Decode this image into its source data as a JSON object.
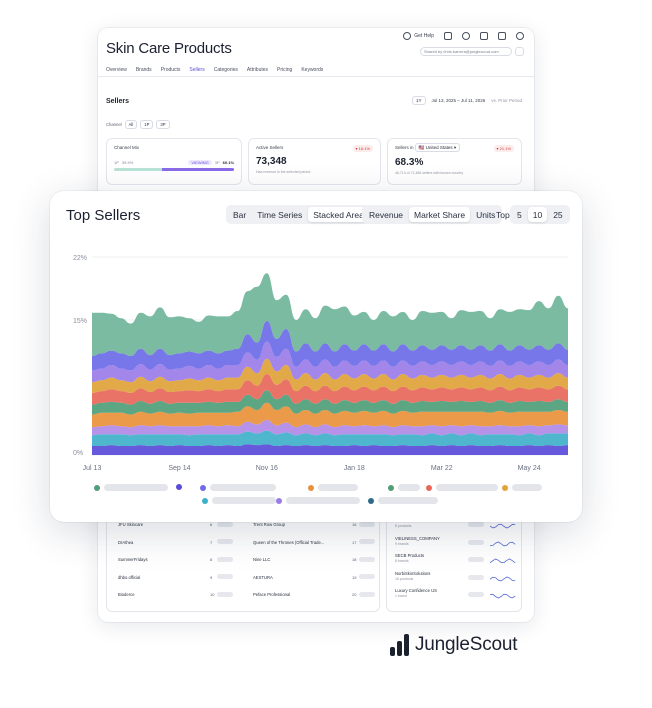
{
  "app": {
    "page_title": "Skin Care Products",
    "help_label": "Get Help",
    "shared_label": "Shared by chris.barrera@junglescout.com"
  },
  "tabs": [
    {
      "label": "Overview"
    },
    {
      "label": "Brands"
    },
    {
      "label": "Products"
    },
    {
      "label": "Sellers",
      "active": true
    },
    {
      "label": "Categories"
    },
    {
      "label": "Attributes"
    },
    {
      "label": "Pricing"
    },
    {
      "label": "Keywords"
    }
  ],
  "sellers_section": {
    "title": "Sellers",
    "period_button": "1Y",
    "date_range": "Jul 13, 2025 – Jul 11, 2026",
    "compare": "vs. Prior Period",
    "channel_label": "Channel",
    "channel_options": [
      "All",
      "1P",
      "3P"
    ]
  },
  "stat_cards": {
    "channel_mix": {
      "label": "Channel Mix",
      "left_label": "1P",
      "left_value": "39.9%",
      "viewing_badge": "VIEWING",
      "right_label": "3P",
      "right_value": "60.1%",
      "share_1p": 0.399
    },
    "active_sellers": {
      "label": "Active Sellers",
      "value": "73,348",
      "delta": "16.1%",
      "sub": "Had revenue in the selected period"
    },
    "sellers_in": {
      "label": "Sellers in",
      "country": "United States",
      "value": "68.3%",
      "delta": "21.1%",
      "sub": "46,714 of 71,366 sellers with known country"
    }
  },
  "top_sellers": {
    "title": "Top Sellers",
    "view_options": [
      "Bar",
      "Time Series",
      "Stacked Area"
    ],
    "view_selected": "Stacked Area",
    "metric_options": [
      "Revenue",
      "Market Share",
      "Units"
    ],
    "metric_selected": "Market Share",
    "top_label": "Top",
    "top_options": [
      "5",
      "10",
      "25"
    ],
    "top_selected": "10"
  },
  "chart_data": {
    "type": "area",
    "stacked": true,
    "ylim": [
      0,
      22
    ],
    "y_ticks": [
      0,
      15,
      22
    ],
    "y_tick_labels": [
      "0%",
      "15%",
      "22%"
    ],
    "x_tick_labels": [
      "Jul 13",
      "Sep 14",
      "Nov 16",
      "Jan 18",
      "Mar 22",
      "May 24"
    ],
    "x_tick_index": [
      0,
      9,
      18,
      27,
      36,
      45
    ],
    "grid": true,
    "legend": "bottom",
    "series": [
      {
        "color": "#5a4bd8",
        "values": [
          1.0,
          1.0,
          1.1,
          1.0,
          1.0,
          1.1,
          1.0,
          1.1,
          1.0,
          1.1,
          1.0,
          1.0,
          1.1,
          1.0,
          1.1,
          1.0,
          1.2,
          1.1,
          1.2,
          1.0,
          1.1,
          1.0,
          1.1,
          1.0,
          1.1,
          1.0,
          1.0,
          1.1,
          1.0,
          1.1,
          1.0,
          1.0,
          1.1,
          1.0,
          1.0,
          1.1,
          1.0,
          1.1,
          1.0,
          1.1,
          1.0,
          1.0,
          1.1,
          1.0,
          1.0,
          1.1,
          1.0,
          1.1,
          1.0,
          1.1
        ]
      },
      {
        "color": "#3fb0c9",
        "values": [
          1.2,
          1.3,
          1.2,
          1.3,
          1.2,
          1.2,
          1.3,
          1.2,
          1.3,
          1.2,
          1.2,
          1.3,
          1.2,
          1.3,
          1.2,
          1.3,
          1.4,
          1.3,
          1.5,
          1.3,
          1.4,
          1.2,
          1.3,
          1.2,
          1.3,
          1.2,
          1.3,
          1.2,
          1.3,
          1.2,
          1.3,
          1.2,
          1.2,
          1.3,
          1.2,
          1.3,
          1.2,
          1.3,
          1.2,
          1.3,
          1.2,
          1.3,
          1.2,
          1.3,
          1.2,
          1.3,
          1.2,
          1.3,
          1.4,
          1.3
        ]
      },
      {
        "color": "#b08ae6",
        "values": [
          0.9,
          0.9,
          1.0,
          0.9,
          0.9,
          1.0,
          0.9,
          1.0,
          0.9,
          0.9,
          1.0,
          0.9,
          1.0,
          0.9,
          1.0,
          0.9,
          1.1,
          1.0,
          1.2,
          1.0,
          1.1,
          0.9,
          1.0,
          0.9,
          1.0,
          0.9,
          1.0,
          0.9,
          1.0,
          0.9,
          1.0,
          0.9,
          1.0,
          0.9,
          1.0,
          0.9,
          1.0,
          0.9,
          1.0,
          0.9,
          1.0,
          0.9,
          1.0,
          0.9,
          1.0,
          0.9,
          1.0,
          0.9,
          1.0,
          0.9
        ]
      },
      {
        "color": "#e8913a",
        "values": [
          1.4,
          1.5,
          1.4,
          1.5,
          1.4,
          1.5,
          1.4,
          1.5,
          1.4,
          1.5,
          1.4,
          1.5,
          1.4,
          1.5,
          1.4,
          1.6,
          1.7,
          1.6,
          1.9,
          1.7,
          1.8,
          1.5,
          1.6,
          1.5,
          1.6,
          1.5,
          1.6,
          1.5,
          1.6,
          1.5,
          1.6,
          1.5,
          1.6,
          1.5,
          1.6,
          1.5,
          1.6,
          1.5,
          1.6,
          1.5,
          1.6,
          1.5,
          1.6,
          1.5,
          1.6,
          1.5,
          1.6,
          1.5,
          1.6,
          1.5
        ]
      },
      {
        "color": "#4f9e7a",
        "values": [
          1.1,
          1.1,
          1.2,
          1.1,
          1.1,
          1.2,
          1.1,
          1.2,
          1.1,
          1.1,
          1.2,
          1.1,
          1.2,
          1.1,
          1.2,
          1.1,
          1.3,
          1.2,
          1.4,
          1.2,
          1.3,
          1.1,
          1.2,
          1.1,
          1.2,
          1.1,
          1.2,
          1.1,
          1.2,
          1.1,
          1.2,
          1.1,
          1.2,
          1.1,
          1.2,
          1.1,
          1.2,
          1.1,
          1.2,
          1.1,
          1.2,
          1.1,
          1.2,
          1.1,
          1.2,
          1.1,
          1.2,
          1.1,
          1.2,
          1.1
        ]
      },
      {
        "color": "#e8675a",
        "values": [
          1.3,
          1.3,
          1.4,
          1.3,
          1.3,
          1.4,
          1.3,
          1.4,
          1.3,
          1.3,
          1.4,
          1.3,
          1.4,
          1.3,
          1.4,
          1.4,
          1.6,
          1.5,
          1.8,
          1.6,
          1.7,
          1.4,
          1.5,
          1.4,
          1.5,
          1.4,
          1.5,
          1.4,
          1.5,
          1.4,
          1.5,
          1.4,
          1.5,
          1.4,
          1.5,
          1.4,
          1.5,
          1.4,
          1.5,
          1.4,
          1.5,
          1.4,
          1.5,
          1.4,
          1.5,
          1.4,
          1.5,
          1.4,
          1.5,
          1.4
        ]
      },
      {
        "color": "#e0a23a",
        "values": [
          1.2,
          1.2,
          1.3,
          1.2,
          1.2,
          1.3,
          1.2,
          1.3,
          1.2,
          1.2,
          1.3,
          1.2,
          1.3,
          1.2,
          1.3,
          1.3,
          1.5,
          1.4,
          1.7,
          1.5,
          1.6,
          1.3,
          1.4,
          1.3,
          1.4,
          1.3,
          1.4,
          1.3,
          1.4,
          1.3,
          1.4,
          1.3,
          1.4,
          1.3,
          1.4,
          1.3,
          1.4,
          1.3,
          1.4,
          1.3,
          1.4,
          1.3,
          1.4,
          1.3,
          1.4,
          1.3,
          1.4,
          1.3,
          1.4,
          1.3
        ]
      },
      {
        "color": "#9a7ce8",
        "values": [
          1.3,
          1.3,
          1.4,
          1.3,
          1.3,
          1.4,
          1.3,
          1.4,
          1.3,
          1.3,
          1.4,
          1.3,
          1.4,
          1.3,
          1.4,
          1.4,
          1.6,
          1.5,
          1.9,
          1.6,
          1.8,
          1.4,
          1.5,
          1.4,
          1.5,
          1.4,
          1.5,
          1.4,
          1.5,
          1.4,
          1.5,
          1.4,
          1.5,
          1.4,
          1.5,
          1.4,
          1.5,
          1.4,
          1.5,
          1.4,
          1.5,
          1.4,
          1.5,
          1.4,
          1.5,
          1.4,
          1.5,
          1.4,
          1.5,
          1.4
        ]
      },
      {
        "color": "#6c6be8",
        "values": [
          1.6,
          1.7,
          1.6,
          1.7,
          1.6,
          1.7,
          1.6,
          1.7,
          1.6,
          1.7,
          1.6,
          1.7,
          1.6,
          1.7,
          1.6,
          1.8,
          2.0,
          1.9,
          2.3,
          2.0,
          2.2,
          1.7,
          1.8,
          1.7,
          1.8,
          1.7,
          1.8,
          1.7,
          1.8,
          1.7,
          1.8,
          1.7,
          1.8,
          1.7,
          1.8,
          1.7,
          1.8,
          1.7,
          1.8,
          1.7,
          1.8,
          1.7,
          1.8,
          1.7,
          1.8,
          1.7,
          1.8,
          1.7,
          1.8,
          1.7
        ]
      },
      {
        "color": "#6fb59a",
        "values": [
          4.8,
          4.5,
          4.1,
          3.9,
          3.6,
          4.0,
          4.3,
          4.6,
          4.2,
          4.1,
          3.7,
          3.5,
          3.9,
          4.1,
          3.8,
          4.2,
          4.8,
          6.2,
          5.3,
          4.3,
          3.8,
          3.5,
          3.8,
          3.7,
          4.2,
          4.7,
          4.2,
          3.9,
          3.6,
          3.4,
          3.7,
          3.9,
          3.6,
          3.4,
          3.8,
          4.1,
          3.7,
          3.5,
          3.9,
          4.2,
          3.8,
          3.6,
          3.9,
          4.3,
          4.0,
          4.4,
          4.9,
          4.6,
          5.3,
          4.6
        ]
      }
    ]
  },
  "legend_dot_colors": [
    "#4f9e7a",
    "#5a4bd8",
    "#6c6be8",
    "#e8913a",
    "#4f9e7a",
    "#e8675a",
    "#e0a23a",
    "#3fb0c9",
    "#9a7ce8",
    "#2e6a8a"
  ],
  "seller_lists": {
    "col1": [
      {
        "name": "JFU Skincare",
        "rank": "6"
      },
      {
        "name": "DrAthea",
        "rank": "7"
      },
      {
        "name": "SummerFridays",
        "rank": "8"
      },
      {
        "name": "dhbo.official",
        "rank": "9"
      },
      {
        "name": "Bioderce",
        "rank": "10"
      }
    ],
    "col2": [
      {
        "name": "Trent Row Group",
        "rank": "16"
      },
      {
        "name": "Queen of the Thrones (Official Trade...",
        "rank": "17"
      },
      {
        "name": "Nine LLC",
        "rank": "18"
      },
      {
        "name": "AESTURA",
        "rank": "19"
      },
      {
        "name": "Peface Professional",
        "rank": "20"
      }
    ],
    "col3": [
      {
        "name": "PERRICONE MD",
        "sub": "8 products"
      },
      {
        "name": "VIELINESS_COMPANY",
        "sub": "9 brands"
      },
      {
        "name": "SECB Products",
        "sub": "8 brands"
      },
      {
        "name": "NorbiSkinSolutions",
        "sub": "16 products"
      },
      {
        "name": "Luxury Confidence US",
        "sub": "1 brand"
      }
    ]
  },
  "logo": {
    "text": "JungleScout"
  }
}
